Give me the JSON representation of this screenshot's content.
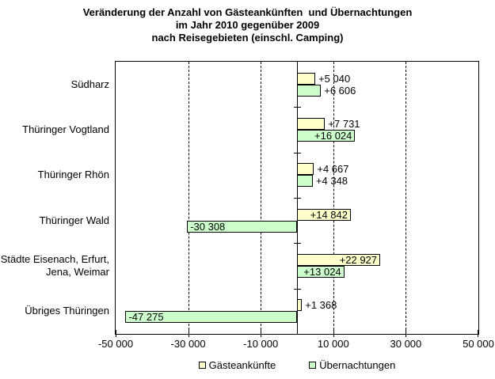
{
  "title": {
    "lines": [
      "Veränderung der Anzahl von Gästeankünften  und Übernachtungen",
      "im Jahr 2010 gegenüber 2009",
      "nach Reisegebieten (einschl. Camping)"
    ]
  },
  "chart_data": {
    "type": "bar",
    "orientation": "horizontal",
    "title": "Veränderung der Anzahl von Gästeankünften und Übernachtungen im Jahr 2010 gegenüber 2009 nach Reisegebieten (einschl. Camping)",
    "categories": [
      [
        "Südharz"
      ],
      [
        "Thüringer Vogtland"
      ],
      [
        "Thüringer Rhön"
      ],
      [
        "Thüringer Wald"
      ],
      [
        "Städte Eisenach, Erfurt,",
        "Jena, Weimar"
      ],
      [
        "Übriges Thüringen"
      ]
    ],
    "series": [
      {
        "name": "Gästeankünfte",
        "color": "#FFFFCC",
        "values": [
          5040,
          7731,
          4667,
          14842,
          22927,
          1368
        ],
        "labels": [
          "+5 040",
          "+7 731",
          "+4 667",
          "+14 842",
          "+22 927",
          "+1 368"
        ]
      },
      {
        "name": "Übernachtungen",
        "color": "#CCFFCC",
        "values": [
          6606,
          16024,
          4348,
          -30308,
          13024,
          -47275
        ],
        "labels": [
          "+6 606",
          "+16 024",
          "+4 348",
          "-30 308",
          "+13 024",
          "-47 275"
        ]
      }
    ],
    "x_axis": {
      "min": -50000,
      "max": 50000,
      "tick_values": [
        -50000,
        -30000,
        -10000,
        10000,
        30000,
        50000
      ],
      "tick_labels": [
        "-50 000",
        "-30 000",
        "-10 000",
        "10 000",
        "30 000",
        "50 000"
      ],
      "gridline_values": [
        -30000,
        -10000,
        10000,
        30000
      ]
    },
    "legend_position": "bottom",
    "grid": true,
    "bar_border_color": "#000000",
    "axis_color": "#000000"
  }
}
